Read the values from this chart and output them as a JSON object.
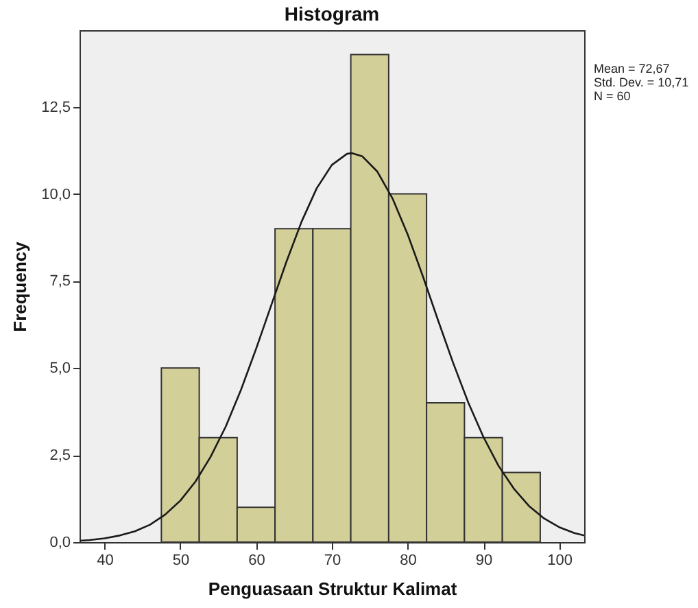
{
  "chart_data": {
    "type": "histogram",
    "title": "Histogram",
    "xlabel": "Penguasaan Struktur Kalimat",
    "ylabel": "Frequency",
    "bins": [
      47.5,
      52.5,
      57.5,
      62.5,
      67.5,
      72.5,
      77.5,
      82.5,
      87.5,
      92.5,
      97.5
    ],
    "values": [
      5,
      3,
      1,
      9,
      9,
      14,
      10,
      4,
      3,
      2
    ],
    "color": "#d3cf98",
    "series": [
      {
        "type": "line",
        "color": "#1a1a1a",
        "x": [
          36.7,
          38,
          40,
          42,
          44,
          46,
          48,
          50,
          52,
          54,
          56,
          58,
          60,
          62,
          64,
          66,
          68,
          70,
          72,
          72.67,
          74,
          76,
          78,
          80,
          82,
          84,
          86,
          88,
          90,
          92,
          94,
          96,
          98,
          100,
          102,
          103.3
        ],
        "values": [
          0.04,
          0.06,
          0.11,
          0.19,
          0.31,
          0.5,
          0.79,
          1.19,
          1.74,
          2.45,
          3.32,
          4.37,
          5.55,
          6.8,
          8.05,
          9.2,
          10.16,
          10.83,
          11.15,
          11.17,
          11.08,
          10.64,
          9.87,
          8.84,
          7.64,
          6.38,
          5.15,
          4.01,
          3.02,
          2.19,
          1.54,
          1.04,
          0.68,
          0.43,
          0.26,
          0.19
        ]
      }
    ],
    "xlim": [
      36.7,
      103.3
    ],
    "xticks": [
      40,
      50,
      60,
      70,
      80,
      90,
      100
    ],
    "ylim": [
      0,
      14.7
    ],
    "yticks": [
      {
        "value": 0,
        "label": "0,0"
      },
      {
        "value": 2.5,
        "label": "2,5"
      },
      {
        "value": 5,
        "label": "5,0"
      },
      {
        "value": 7.5,
        "label": "7,5"
      },
      {
        "value": 10,
        "label": "10,0"
      },
      {
        "value": 12.5,
        "label": "12,5"
      }
    ],
    "grid": false,
    "annotations": [
      "Mean = 72,67",
      "Std. Dev. = 10,71",
      "N = 60"
    ]
  }
}
